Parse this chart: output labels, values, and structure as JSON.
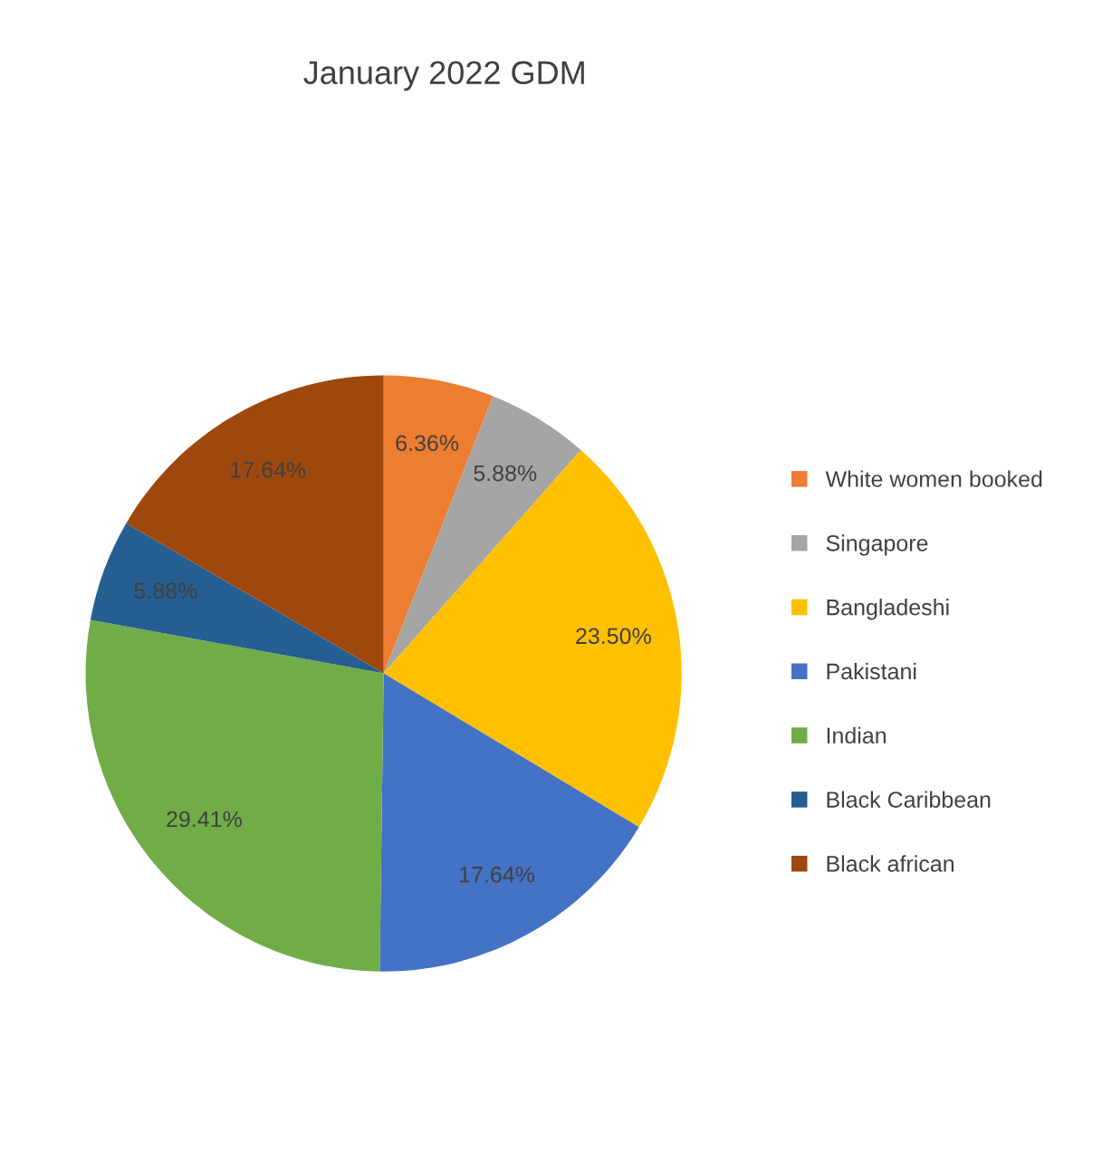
{
  "chart_data": {
    "type": "pie",
    "title": "January 2022 GDM",
    "categories": [
      "White women booked",
      "Singapore",
      "Bangladeshi",
      "Pakistani",
      "Indian",
      "Black Caribbean",
      "Black african"
    ],
    "values": [
      6.36,
      5.88,
      23.5,
      17.64,
      29.41,
      5.88,
      17.64
    ],
    "colors": [
      "#ed7d31",
      "#a5a5a5",
      "#ffc000",
      "#4472c4",
      "#70ad47",
      "#255e91",
      "#9e480e"
    ],
    "value_labels": [
      "6.36%",
      "5.88%",
      "23.50%",
      "17.64%",
      "29.41%",
      "5.88%",
      "17.64%"
    ],
    "legend": "right"
  }
}
